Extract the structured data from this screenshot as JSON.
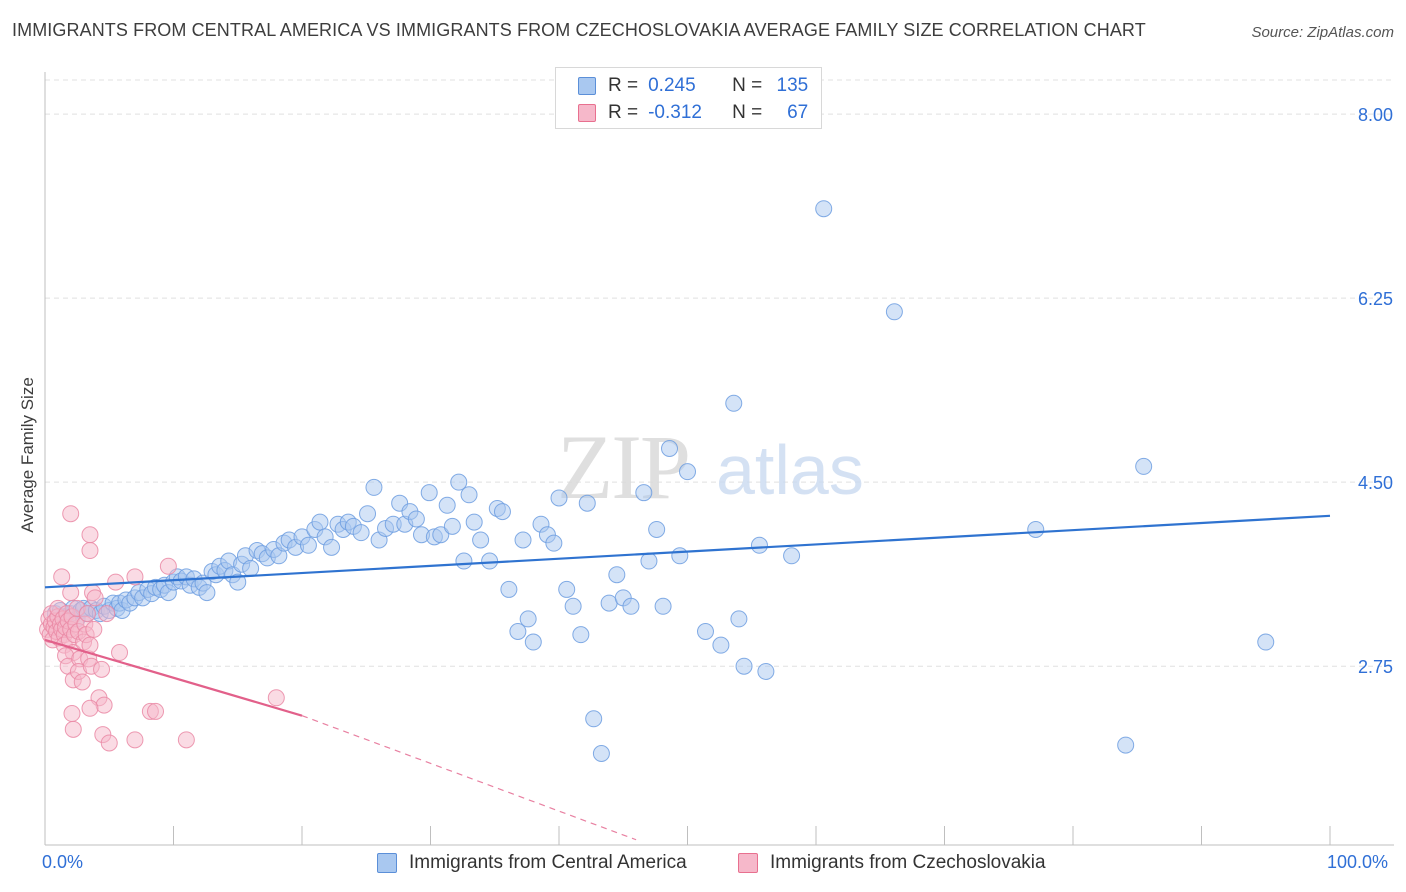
{
  "title": "IMMIGRANTS FROM CENTRAL AMERICA VS IMMIGRANTS FROM CZECHOSLOVAKIA AVERAGE FAMILY SIZE CORRELATION CHART",
  "source": "Source: ZipAtlas.com",
  "watermark": {
    "zip": "ZIP",
    "atlas": "atlas"
  },
  "colors": {
    "blue": "#2f6fd6",
    "blue_fill": "#a9c8f0",
    "blue_line": "#2f73d0",
    "pink": "#e8708f",
    "pink_fill": "#f6b8ca",
    "pink_line": "#e2608a",
    "grid": "#e0e0e0",
    "axis": "#bfbfbf",
    "watermark": "#d9d9d9"
  },
  "legend_top": {
    "rows": [
      {
        "series": "blue",
        "r_label": "R =",
        "r_value": "0.245",
        "n_label": "N =",
        "n_value": "135"
      },
      {
        "series": "pink",
        "r_label": "R =",
        "r_value": "-0.312",
        "n_label": "N =",
        "n_value": "67"
      }
    ]
  },
  "legend_bottom": [
    {
      "series": "blue",
      "label": "Immigrants from Central America"
    },
    {
      "series": "pink",
      "label": "Immigrants from Czechoslovakia"
    }
  ],
  "chart_data": {
    "type": "scatter",
    "title": "IMMIGRANTS FROM CENTRAL AMERICA VS IMMIGRANTS FROM CZECHOSLOVAKIA AVERAGE FAMILY SIZE CORRELATION CHART",
    "xlabel": "",
    "ylabel": "Average Family Size",
    "xlim": [
      0,
      100
    ],
    "ylim": [
      1.05,
      8.4
    ],
    "x_tick_labels": [
      "0.0%",
      "100.0%"
    ],
    "y_ticks": [
      2.75,
      4.5,
      6.25,
      8.0
    ],
    "y_tick_labels": [
      "2.75",
      "4.50",
      "6.25",
      "8.00"
    ],
    "grid": true,
    "series": [
      {
        "name": "Immigrants from Central America",
        "color": "blue",
        "trend": {
          "x0": 0,
          "y0": 3.5,
          "x1": 100,
          "y1": 4.18
        },
        "points": [
          [
            0.8,
            3.25
          ],
          [
            1.2,
            3.28
          ],
          [
            1.5,
            3.22
          ],
          [
            2.0,
            3.25
          ],
          [
            2.2,
            3.3
          ],
          [
            2.5,
            3.2
          ],
          [
            2.8,
            3.28
          ],
          [
            3.0,
            3.3
          ],
          [
            3.3,
            3.25
          ],
          [
            3.6,
            3.3
          ],
          [
            4.0,
            3.28
          ],
          [
            4.3,
            3.25
          ],
          [
            4.6,
            3.32
          ],
          [
            5.0,
            3.28
          ],
          [
            5.3,
            3.35
          ],
          [
            5.6,
            3.3
          ],
          [
            5.8,
            3.35
          ],
          [
            6.0,
            3.28
          ],
          [
            6.3,
            3.38
          ],
          [
            6.6,
            3.35
          ],
          [
            7.0,
            3.4
          ],
          [
            7.3,
            3.45
          ],
          [
            7.6,
            3.4
          ],
          [
            8.0,
            3.48
          ],
          [
            8.3,
            3.44
          ],
          [
            8.6,
            3.5
          ],
          [
            9.0,
            3.48
          ],
          [
            9.3,
            3.52
          ],
          [
            9.6,
            3.45
          ],
          [
            10.0,
            3.55
          ],
          [
            10.3,
            3.6
          ],
          [
            10.6,
            3.56
          ],
          [
            11.0,
            3.6
          ],
          [
            11.3,
            3.52
          ],
          [
            11.6,
            3.58
          ],
          [
            12.0,
            3.5
          ],
          [
            12.3,
            3.54
          ],
          [
            12.6,
            3.45
          ],
          [
            13.0,
            3.65
          ],
          [
            13.3,
            3.62
          ],
          [
            13.6,
            3.7
          ],
          [
            14.0,
            3.66
          ],
          [
            14.3,
            3.75
          ],
          [
            14.6,
            3.62
          ],
          [
            15.0,
            3.55
          ],
          [
            15.3,
            3.72
          ],
          [
            15.6,
            3.8
          ],
          [
            16.0,
            3.68
          ],
          [
            16.5,
            3.85
          ],
          [
            16.9,
            3.82
          ],
          [
            17.3,
            3.78
          ],
          [
            17.8,
            3.86
          ],
          [
            18.2,
            3.8
          ],
          [
            18.6,
            3.92
          ],
          [
            19.0,
            3.95
          ],
          [
            19.5,
            3.88
          ],
          [
            20.0,
            3.98
          ],
          [
            20.5,
            3.9
          ],
          [
            21.0,
            4.05
          ],
          [
            21.4,
            4.12
          ],
          [
            21.8,
            3.98
          ],
          [
            22.3,
            3.88
          ],
          [
            22.8,
            4.1
          ],
          [
            23.2,
            4.05
          ],
          [
            23.6,
            4.12
          ],
          [
            24.0,
            4.08
          ],
          [
            24.6,
            4.02
          ],
          [
            25.1,
            4.2
          ],
          [
            25.6,
            4.45
          ],
          [
            26.0,
            3.95
          ],
          [
            26.5,
            4.06
          ],
          [
            27.1,
            4.1
          ],
          [
            27.6,
            4.3
          ],
          [
            28.0,
            4.1
          ],
          [
            28.4,
            4.22
          ],
          [
            28.9,
            4.15
          ],
          [
            29.3,
            4.0
          ],
          [
            29.9,
            4.4
          ],
          [
            30.3,
            3.98
          ],
          [
            30.8,
            4.0
          ],
          [
            31.3,
            4.28
          ],
          [
            31.7,
            4.08
          ],
          [
            32.2,
            4.5
          ],
          [
            32.6,
            3.75
          ],
          [
            33.0,
            4.38
          ],
          [
            33.4,
            4.12
          ],
          [
            33.9,
            3.95
          ],
          [
            34.6,
            3.75
          ],
          [
            35.2,
            4.25
          ],
          [
            35.6,
            4.22
          ],
          [
            36.1,
            3.48
          ],
          [
            36.8,
            3.08
          ],
          [
            37.2,
            3.95
          ],
          [
            37.6,
            3.2
          ],
          [
            38.0,
            2.98
          ],
          [
            38.6,
            4.1
          ],
          [
            39.1,
            4.0
          ],
          [
            39.6,
            3.92
          ],
          [
            40.0,
            4.35
          ],
          [
            40.6,
            3.48
          ],
          [
            41.1,
            3.32
          ],
          [
            41.7,
            3.05
          ],
          [
            42.2,
            4.3
          ],
          [
            42.7,
            2.25
          ],
          [
            43.3,
            1.92
          ],
          [
            43.9,
            3.35
          ],
          [
            44.5,
            3.62
          ],
          [
            45.0,
            3.4
          ],
          [
            45.6,
            3.32
          ],
          [
            46.6,
            4.4
          ],
          [
            47.0,
            3.75
          ],
          [
            47.6,
            4.05
          ],
          [
            48.1,
            3.32
          ],
          [
            48.6,
            4.82
          ],
          [
            49.4,
            3.8
          ],
          [
            50.0,
            4.6
          ],
          [
            51.4,
            3.08
          ],
          [
            52.6,
            2.95
          ],
          [
            53.6,
            5.25
          ],
          [
            54.0,
            3.2
          ],
          [
            54.4,
            2.75
          ],
          [
            55.6,
            3.9
          ],
          [
            56.1,
            2.7
          ],
          [
            58.1,
            3.8
          ],
          [
            60.6,
            7.1
          ],
          [
            66.1,
            6.12
          ],
          [
            77.1,
            4.05
          ],
          [
            85.5,
            4.65
          ],
          [
            84.1,
            2.0
          ],
          [
            95.0,
            2.98
          ]
        ]
      },
      {
        "name": "Immigrants from Czechoslovakia",
        "color": "pink",
        "trend": {
          "x0": 0,
          "y0": 3.0,
          "x1": 20,
          "y1": 2.28,
          "dash_to": {
            "x": 46,
            "y": 1.1
          }
        },
        "points": [
          [
            0.2,
            3.1
          ],
          [
            0.3,
            3.2
          ],
          [
            0.4,
            3.05
          ],
          [
            0.5,
            3.15
          ],
          [
            0.5,
            3.25
          ],
          [
            0.6,
            3.0
          ],
          [
            0.7,
            3.12
          ],
          [
            0.8,
            3.18
          ],
          [
            0.9,
            3.08
          ],
          [
            1.0,
            3.22
          ],
          [
            1.0,
            3.3
          ],
          [
            1.1,
            3.02
          ],
          [
            1.2,
            3.15
          ],
          [
            1.3,
            3.1
          ],
          [
            1.3,
            3.6
          ],
          [
            1.4,
            3.2
          ],
          [
            1.5,
            3.05
          ],
          [
            1.5,
            2.95
          ],
          [
            1.6,
            3.12
          ],
          [
            1.7,
            3.25
          ],
          [
            1.8,
            3.18
          ],
          [
            1.9,
            3.0
          ],
          [
            2.0,
            3.1
          ],
          [
            2.0,
            3.45
          ],
          [
            2.1,
            3.22
          ],
          [
            2.2,
            2.88
          ],
          [
            2.3,
            3.05
          ],
          [
            2.4,
            3.15
          ],
          [
            2.5,
            3.3
          ],
          [
            2.6,
            3.08
          ],
          [
            1.6,
            2.85
          ],
          [
            1.8,
            2.75
          ],
          [
            2.7,
            2.82
          ],
          [
            2.2,
            2.62
          ],
          [
            2.6,
            2.7
          ],
          [
            2.9,
            2.6
          ],
          [
            3.0,
            2.98
          ],
          [
            3.1,
            3.15
          ],
          [
            3.2,
            3.05
          ],
          [
            3.3,
            3.25
          ],
          [
            3.4,
            2.82
          ],
          [
            3.5,
            2.95
          ],
          [
            3.6,
            2.75
          ],
          [
            3.7,
            3.45
          ],
          [
            3.8,
            3.1
          ],
          [
            3.9,
            3.4
          ],
          [
            2.0,
            4.2
          ],
          [
            3.5,
            4.0
          ],
          [
            3.5,
            3.85
          ],
          [
            4.2,
            2.45
          ],
          [
            4.4,
            2.72
          ],
          [
            2.1,
            2.3
          ],
          [
            2.2,
            2.15
          ],
          [
            4.6,
            2.38
          ],
          [
            3.5,
            2.35
          ],
          [
            4.5,
            2.1
          ],
          [
            5.0,
            2.02
          ],
          [
            7.0,
            2.05
          ],
          [
            8.2,
            2.32
          ],
          [
            8.6,
            2.32
          ],
          [
            11.0,
            2.05
          ],
          [
            18.0,
            2.45
          ],
          [
            4.8,
            3.25
          ],
          [
            5.5,
            3.55
          ],
          [
            7.0,
            3.6
          ],
          [
            9.6,
            3.7
          ],
          [
            5.8,
            2.88
          ]
        ]
      }
    ]
  }
}
